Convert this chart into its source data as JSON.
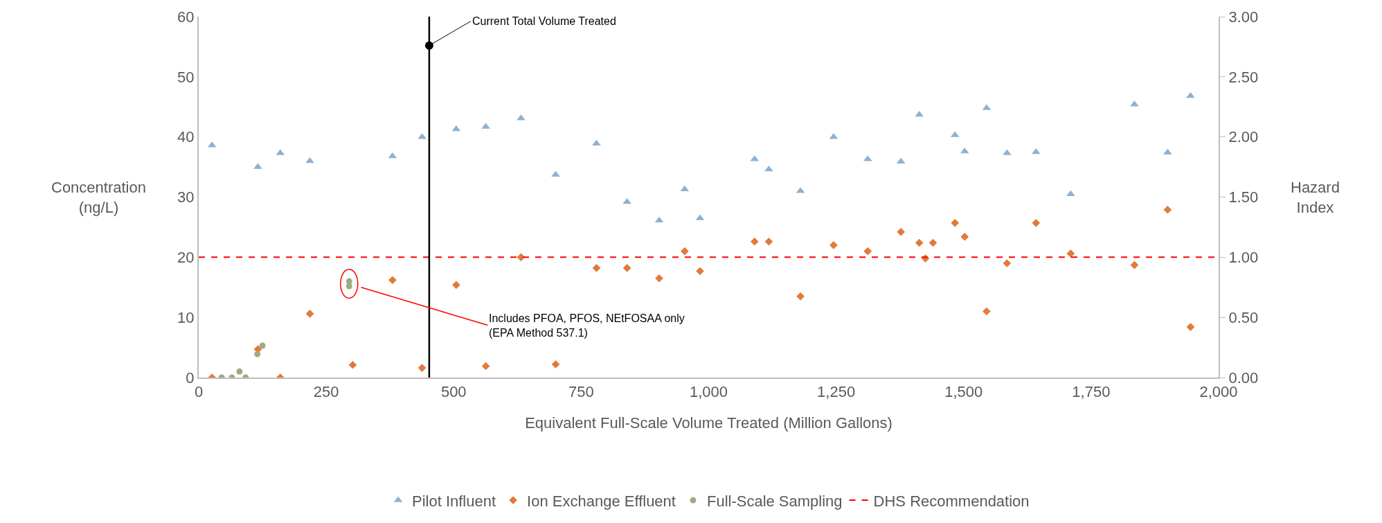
{
  "chart_data": {
    "type": "scatter",
    "xlabel": "Equivalent Full-Scale Volume Treated (Million Gallons)",
    "ylabel": "Concentration\n(ng/L)",
    "y2label": "Hazard\nIndex",
    "series": [
      {
        "name": "Pilot Influent",
        "color": "#8fb1d1",
        "marker": "triangle",
        "x": [
          26,
          116,
          160,
          218,
          380,
          438,
          505,
          563,
          632,
          700,
          780,
          840,
          903,
          953,
          983,
          1090,
          1118,
          1180,
          1245,
          1312,
          1377,
          1413,
          1483,
          1502,
          1545,
          1585,
          1642,
          1710,
          1835,
          1900,
          1945
        ],
        "values": [
          38.6,
          35,
          37.3,
          36,
          36.8,
          40,
          41.3,
          41.7,
          43.1,
          33.7,
          38.9,
          29.2,
          26.1,
          31.3,
          26.5,
          36.3,
          34.6,
          31,
          40,
          36.3,
          35.9,
          43.7,
          40.3,
          37.6,
          44.8,
          37.3,
          37.5,
          30.5,
          45.4,
          37.4,
          46.8
        ]
      },
      {
        "name": "Ion Exchange Effluent",
        "color": "#e07b39",
        "marker": "diamond",
        "x": [
          26,
          116,
          160,
          218,
          302,
          380,
          438,
          505,
          563,
          632,
          700,
          780,
          840,
          903,
          953,
          983,
          1090,
          1118,
          1180,
          1245,
          1312,
          1377,
          1413,
          1425,
          1440,
          1483,
          1502,
          1545,
          1585,
          1642,
          1710,
          1835,
          1900,
          1945
        ],
        "values": [
          0,
          4.7,
          0,
          10.6,
          2.1,
          16.2,
          1.6,
          15.4,
          1.9,
          20,
          2.2,
          18.2,
          18.2,
          16.5,
          21,
          17.7,
          22.6,
          22.6,
          13.5,
          22,
          21,
          24.2,
          22.4,
          19.8,
          22.4,
          25.7,
          23.4,
          11,
          19,
          25.7,
          20.6,
          18.7,
          27.9,
          8.4
        ]
      },
      {
        "name": "Full-Scale Sampling",
        "color": "#9eab7f",
        "marker": "circle",
        "x": [
          45,
          65,
          80,
          92,
          115,
          125,
          295,
          295
        ],
        "values": [
          0,
          0,
          1,
          0,
          3.9,
          5.3,
          16,
          15.2
        ]
      }
    ],
    "ref_lines": [
      {
        "axis": "y",
        "value": 20,
        "label": "DHS Recommendation",
        "color": "#ff0000",
        "line_style": "dashed"
      },
      {
        "axis": "x",
        "value": 452,
        "label": "Current Total Volume Treated",
        "color": "#000000",
        "line_style": "solid"
      }
    ],
    "annotations": [
      {
        "text": "Includes PFOA, PFOS, NEtFOSAA only\n(EPA Method 537.1)",
        "x": 295,
        "y": 15.6
      }
    ],
    "xlim": [
      0,
      2000
    ],
    "xticks": [
      0,
      250,
      500,
      750,
      {
        "value": 1000,
        "label": "1,000"
      },
      {
        "value": 1250,
        "label": "1,250"
      },
      {
        "value": 1500,
        "label": "1,500"
      },
      {
        "value": 1750,
        "label": "1,750"
      },
      {
        "value": 2000,
        "label": "2,000"
      }
    ],
    "ylim": [
      0,
      60
    ],
    "yticks": [
      0,
      10,
      20,
      30,
      40,
      50,
      60
    ],
    "y2lim": [
      0,
      3
    ],
    "y2ticks": [
      {
        "value": 0,
        "label": "0.00"
      },
      {
        "value": 0.5,
        "label": "0.50"
      },
      {
        "value": 1,
        "label": "1.00"
      },
      {
        "value": 1.5,
        "label": "1.50"
      },
      {
        "value": 2,
        "label": "2.00"
      },
      {
        "value": 2.5,
        "label": "2.50"
      },
      {
        "value": 3,
        "label": "3.00"
      }
    ],
    "legend": "bottom"
  }
}
